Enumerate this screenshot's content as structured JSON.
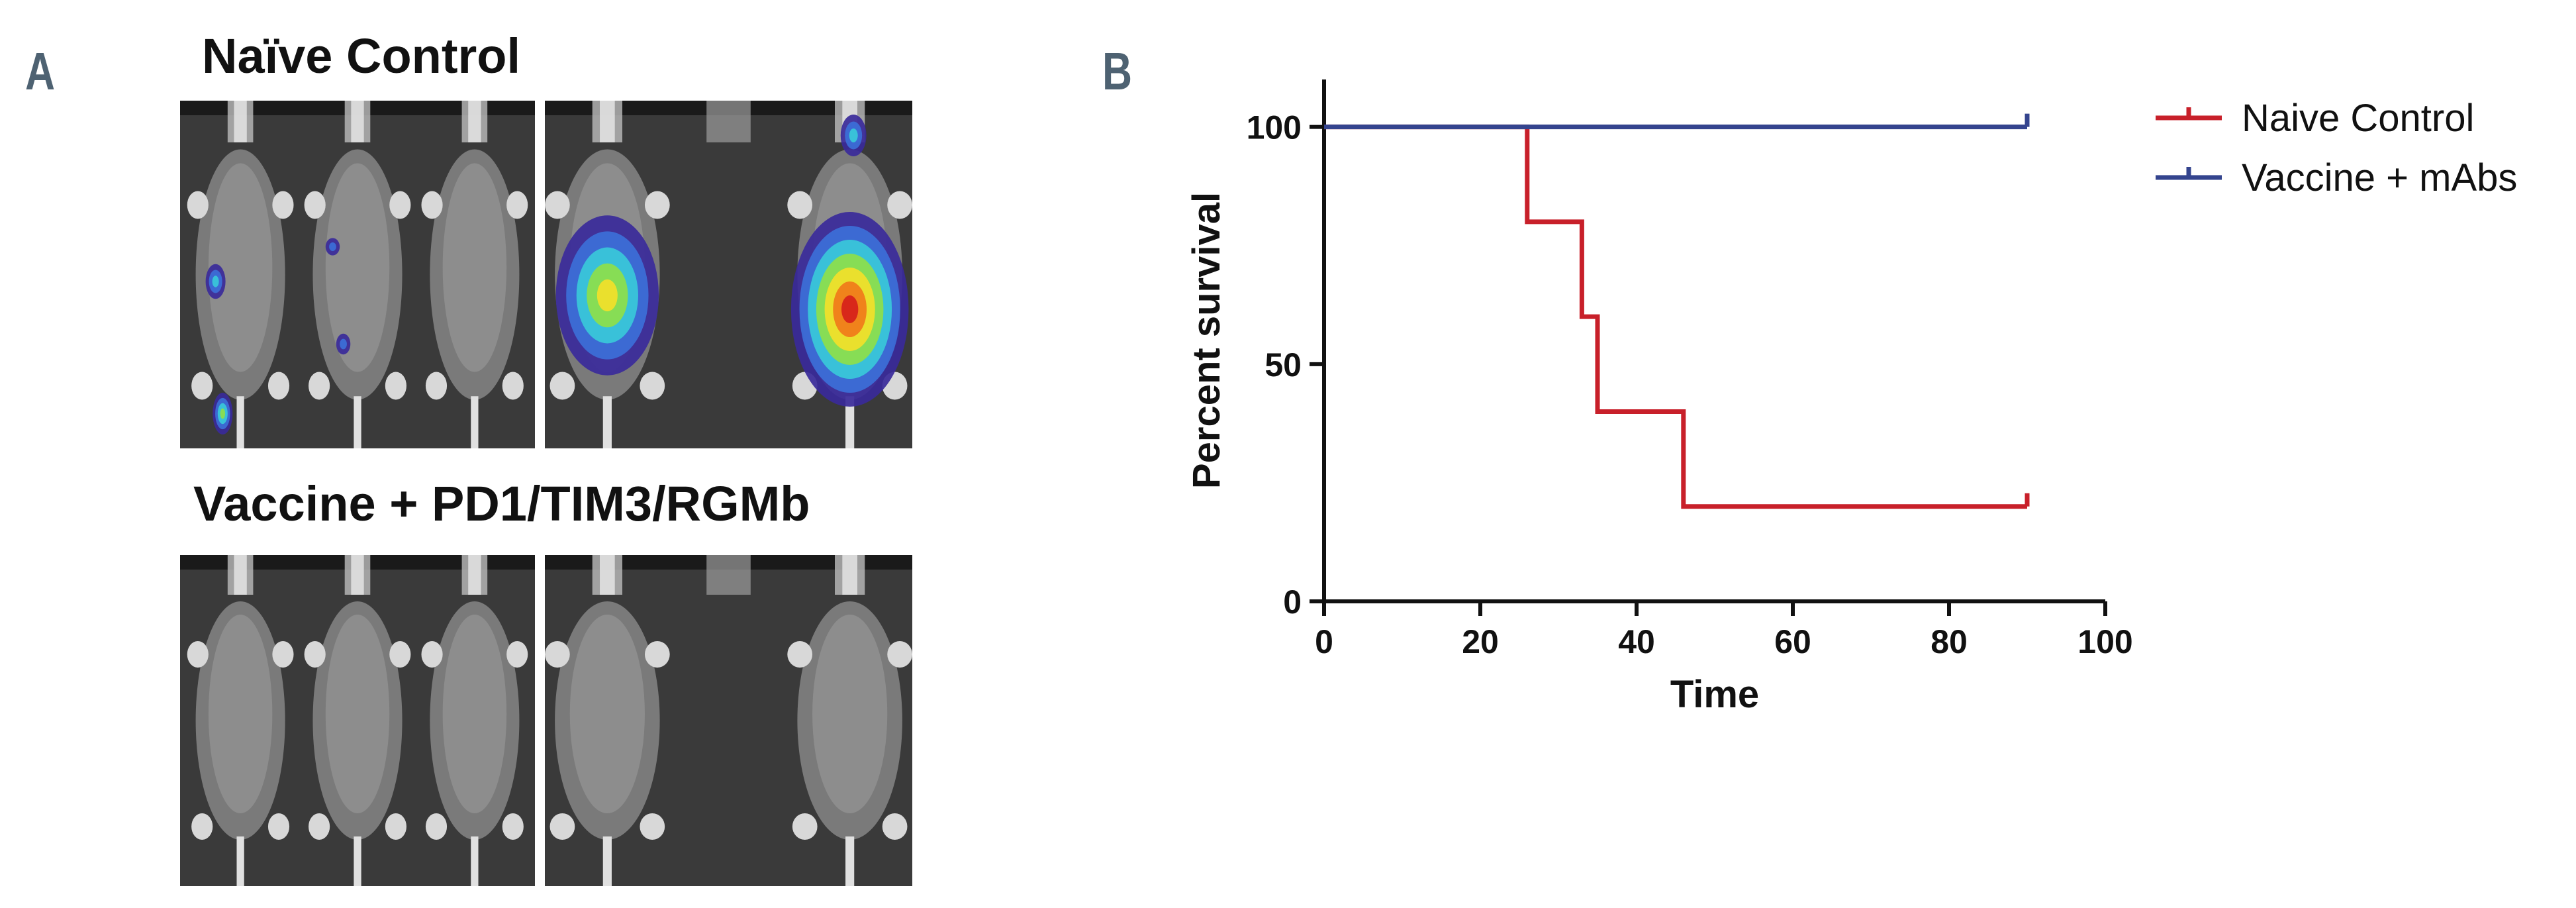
{
  "panel_a": {
    "letter": "A",
    "groups": [
      {
        "title": "Naïve Control",
        "images": [
          {
            "mice": 3,
            "signal": "low"
          },
          {
            "mice": 2,
            "signal": "high"
          }
        ]
      },
      {
        "title": "Vaccine + PD1/TIM3/RGMb",
        "images": [
          {
            "mice": 3,
            "signal": "none"
          },
          {
            "mice": 2,
            "signal": "none"
          }
        ]
      }
    ],
    "signal_colormap": [
      "#3a2a9a",
      "#3c6fd8",
      "#39c9d9",
      "#8ee04a",
      "#f2e02a",
      "#f07a1a",
      "#d6201a"
    ]
  },
  "panel_b": {
    "letter": "B",
    "chart_data": {
      "type": "line",
      "step": true,
      "title": "",
      "xlabel": "Time",
      "ylabel": "Percent survival",
      "xlim": [
        0,
        100
      ],
      "ylim": [
        0,
        100
      ],
      "xticks": [
        "0",
        "20",
        "40",
        "60",
        "80",
        "100"
      ],
      "yticks": [
        "0",
        "50",
        "100"
      ],
      "grid": false,
      "legend_position": "right",
      "series": [
        {
          "name": "Naive Control",
          "color": "#c8202a",
          "x": [
            0,
            26,
            33,
            35,
            46,
            90
          ],
          "y": [
            100,
            80,
            60,
            40,
            20,
            20
          ]
        },
        {
          "name": "Vaccine + mAbs",
          "color": "#34448e",
          "x": [
            0,
            90
          ],
          "y": [
            100,
            100
          ]
        }
      ]
    }
  }
}
